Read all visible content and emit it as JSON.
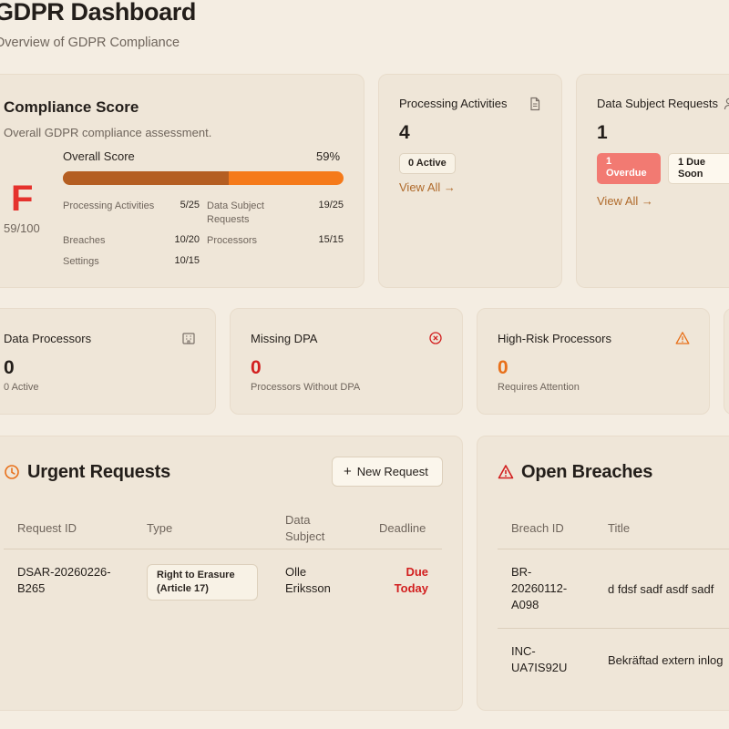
{
  "header": {
    "title": "GDPR Dashboard",
    "subtitle": "Overview of GDPR Compliance"
  },
  "compliance": {
    "title": "Compliance Score",
    "description": "Overall GDPR compliance assessment.",
    "grade": "F",
    "score_text": "59/100",
    "overall_label": "Overall Score",
    "overall_pct_text": "59%",
    "overall_pct": 59,
    "metrics": [
      {
        "label": "Processing Activities",
        "value": "5/25"
      },
      {
        "label": "Data Subject Requests",
        "value": "19/25"
      },
      {
        "label": "Breaches",
        "value": "10/20"
      },
      {
        "label": "Processors",
        "value": "15/15"
      },
      {
        "label": "Settings",
        "value": "10/15"
      }
    ],
    "colors": {
      "grade": "#e5322d",
      "bar_fill": "#b45e22",
      "bar_track": "#f57a1a"
    }
  },
  "processing_activities": {
    "title": "Processing Activities",
    "icon": "document-icon",
    "count": "4",
    "badge": "0 Active",
    "link": "View All →"
  },
  "data_subject_requests": {
    "title": "Data Subject Requests",
    "icon": "users-icon",
    "count": "1",
    "overdue_badge": "1 Overdue",
    "due_soon_badge": "1 Due Soon",
    "link": "View All →"
  },
  "data_processors": {
    "title": "Data Processors",
    "icon": "building-icon",
    "count": "0",
    "sub": "0 Active"
  },
  "missing_dpa": {
    "title": "Missing DPA",
    "icon": "x-circle-icon",
    "count": "0",
    "sub": "Processors Without DPA",
    "color": "#d21f1f"
  },
  "high_risk": {
    "title": "High-Risk Processors",
    "icon": "warning-icon",
    "count": "0",
    "sub": "Requires Attention",
    "color": "#e8701a"
  },
  "urgent_requests": {
    "title": "Urgent Requests",
    "icon": "clock-icon",
    "new_button": "New Request",
    "columns": [
      "Request ID",
      "Type",
      "Data Subject",
      "Deadline"
    ],
    "rows": [
      {
        "id": "DSAR-20260226-B265",
        "type": "Right to Erasure (Article 17)",
        "subject": "Olle Eriksson",
        "deadline": "Due Today"
      }
    ]
  },
  "open_breaches": {
    "title": "Open Breaches",
    "icon": "alert-triangle-icon",
    "columns": [
      "Breach ID",
      "Title"
    ],
    "rows": [
      {
        "id": "BR-20260112-A098",
        "title": "d fdsf sadf asdf sadf"
      },
      {
        "id": "INC-UA7IS92U",
        "title": "Bekräftad extern inlog"
      }
    ]
  }
}
